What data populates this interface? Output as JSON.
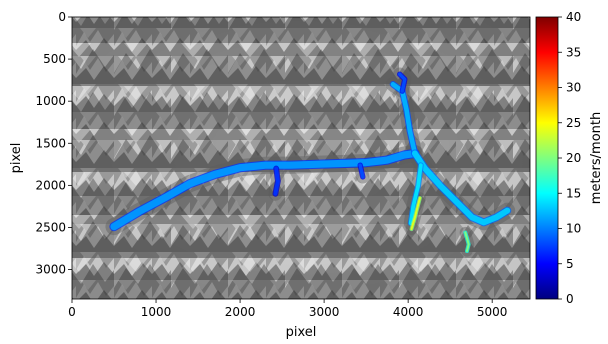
{
  "chart_data": {
    "type": "heatmap",
    "xlabel": "pixel",
    "ylabel": "pixel",
    "xlim": [
      0,
      5450
    ],
    "ylim": [
      3350,
      0
    ],
    "x_ticks": [
      0,
      1000,
      2000,
      3000,
      4000,
      5000
    ],
    "y_ticks": [
      0,
      500,
      1000,
      1500,
      2000,
      2500,
      3000
    ],
    "colorbar": {
      "label": "meters/month",
      "colormap": "jet",
      "range": [
        0,
        40
      ],
      "ticks": [
        0,
        5,
        10,
        15,
        20,
        25,
        30,
        35,
        40
      ],
      "colors": [
        "#00007f",
        "#0000ff",
        "#007fff",
        "#00ffff",
        "#7fff7f",
        "#ffff00",
        "#ff7f00",
        "#ff0000",
        "#7f0000"
      ]
    },
    "background": "grayscale terrain image",
    "overlays": [
      {
        "name": "main-trunk",
        "value": 11,
        "width": 85,
        "points": [
          [
            500,
            2490
          ],
          [
            800,
            2310
          ],
          [
            1100,
            2150
          ],
          [
            1400,
            1980
          ],
          [
            1700,
            1870
          ],
          [
            2000,
            1790
          ],
          [
            2300,
            1760
          ],
          [
            2600,
            1760
          ],
          [
            2900,
            1750
          ],
          [
            3200,
            1740
          ],
          [
            3500,
            1730
          ],
          [
            3750,
            1700
          ],
          [
            3950,
            1640
          ],
          [
            4080,
            1620
          ]
        ]
      },
      {
        "name": "upper-tributary",
        "value": 12,
        "width": 55,
        "points": [
          [
            4080,
            1620
          ],
          [
            4020,
            1350
          ],
          [
            3980,
            1100
          ],
          [
            3930,
            880
          ],
          [
            3820,
            800
          ]
        ]
      },
      {
        "name": "upper-tributary-head",
        "value": 8,
        "width": 40,
        "points": [
          [
            3930,
            880
          ],
          [
            3960,
            740
          ],
          [
            3900,
            680
          ]
        ]
      },
      {
        "name": "east-branch",
        "value": 13,
        "width": 70,
        "points": [
          [
            4080,
            1620
          ],
          [
            4200,
            1800
          ],
          [
            4380,
            2000
          ],
          [
            4580,
            2200
          ],
          [
            4760,
            2380
          ],
          [
            4900,
            2440
          ],
          [
            5050,
            2380
          ],
          [
            5180,
            2300
          ]
        ]
      },
      {
        "name": "south-branch",
        "value": 14,
        "width": 45,
        "points": [
          [
            4150,
            1760
          ],
          [
            4120,
            2000
          ],
          [
            4060,
            2250
          ],
          [
            4030,
            2450
          ]
        ]
      },
      {
        "name": "side-inlet-1",
        "value": 7,
        "width": 45,
        "points": [
          [
            2430,
            1800
          ],
          [
            2450,
            1950
          ],
          [
            2420,
            2100
          ]
        ]
      },
      {
        "name": "side-inlet-2",
        "value": 8,
        "width": 40,
        "points": [
          [
            3430,
            1760
          ],
          [
            3460,
            1900
          ]
        ]
      },
      {
        "name": "fast-streak",
        "value": 24,
        "width": 20,
        "points": [
          [
            4140,
            2150
          ],
          [
            4080,
            2380
          ],
          [
            4040,
            2520
          ]
        ]
      },
      {
        "name": "terminus-streak",
        "value": 20,
        "width": 16,
        "points": [
          [
            4680,
            2560
          ],
          [
            4720,
            2700
          ],
          [
            4700,
            2780
          ]
        ]
      }
    ]
  }
}
